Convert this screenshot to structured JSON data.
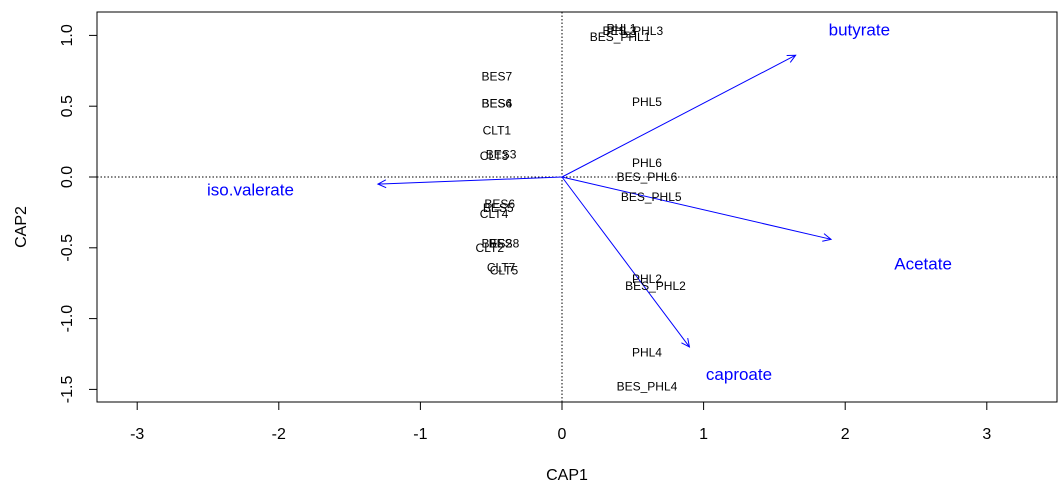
{
  "chart_data": {
    "type": "scatter",
    "title": "",
    "xlabel": "CAP1",
    "ylabel": "CAP2",
    "xlim": [
      -3.3,
      3.5
    ],
    "ylim": [
      -1.6,
      1.15
    ],
    "xticks": [
      "-3",
      "-2",
      "-1",
      "0",
      "1",
      "2",
      "3"
    ],
    "yticks": [
      "-1.5",
      "-1.0",
      "-0.5",
      "0.0",
      "0.5",
      "1.0"
    ],
    "reference_lines": {
      "x": 0,
      "y": 0,
      "style": "dotted"
    },
    "arrow_color": "#0000ff",
    "point_color": "#000000",
    "sites": [
      {
        "label": "PHL1",
        "x": 0.42,
        "y": 1.05
      },
      {
        "label": "BES_PHL3",
        "x": 0.5,
        "y": 1.03
      },
      {
        "label": "PHL3",
        "x": 0.42,
        "y": 1.03
      },
      {
        "label": "BES_PHL1",
        "x": 0.41,
        "y": 0.99
      },
      {
        "label": "BES7",
        "x": -0.46,
        "y": 0.71
      },
      {
        "label": "BES6",
        "x": -0.46,
        "y": 0.52
      },
      {
        "label": "BES4",
        "x": -0.46,
        "y": 0.52
      },
      {
        "label": "PHL5",
        "x": 0.6,
        "y": 0.53
      },
      {
        "label": "CLT1",
        "x": -0.46,
        "y": 0.33
      },
      {
        "label": "BES3",
        "x": -0.43,
        "y": 0.16
      },
      {
        "label": "CLT3",
        "x": -0.48,
        "y": 0.15
      },
      {
        "label": "PHL6",
        "x": 0.6,
        "y": 0.1
      },
      {
        "label": "BES_PHL6",
        "x": 0.6,
        "y": 0.0
      },
      {
        "label": "BES_PHL5",
        "x": 0.63,
        "y": -0.14
      },
      {
        "label": "BES6",
        "x": -0.44,
        "y": -0.19
      },
      {
        "label": "BES5",
        "x": -0.45,
        "y": -0.22
      },
      {
        "label": "CLT4",
        "x": -0.48,
        "y": -0.26
      },
      {
        "label": "BES8",
        "x": -0.41,
        "y": -0.47
      },
      {
        "label": "BES2",
        "x": -0.46,
        "y": -0.47
      },
      {
        "label": "CLT2",
        "x": -0.51,
        "y": -0.5
      },
      {
        "label": "CLT7",
        "x": -0.43,
        "y": -0.64
      },
      {
        "label": "CLT5",
        "x": -0.41,
        "y": -0.66
      },
      {
        "label": "PHL2",
        "x": 0.6,
        "y": -0.72
      },
      {
        "label": "BES_PHL2",
        "x": 0.66,
        "y": -0.77
      },
      {
        "label": "PHL4",
        "x": 0.6,
        "y": -1.24
      },
      {
        "label": "BES_PHL4",
        "x": 0.6,
        "y": -1.48
      }
    ],
    "arrows": [
      {
        "label": "butyrate",
        "x": 1.65,
        "y": 0.86,
        "label_x": 2.1,
        "label_y": 1.04
      },
      {
        "label": "iso.valerate",
        "x": -1.3,
        "y": -0.05,
        "label_x": -2.2,
        "label_y": -0.09
      },
      {
        "label": "Acetate",
        "x": 1.9,
        "y": -0.44,
        "label_x": 2.55,
        "label_y": -0.61
      },
      {
        "label": "caproate",
        "x": 0.9,
        "y": -1.2,
        "label_x": 1.25,
        "label_y": -1.39
      }
    ]
  }
}
